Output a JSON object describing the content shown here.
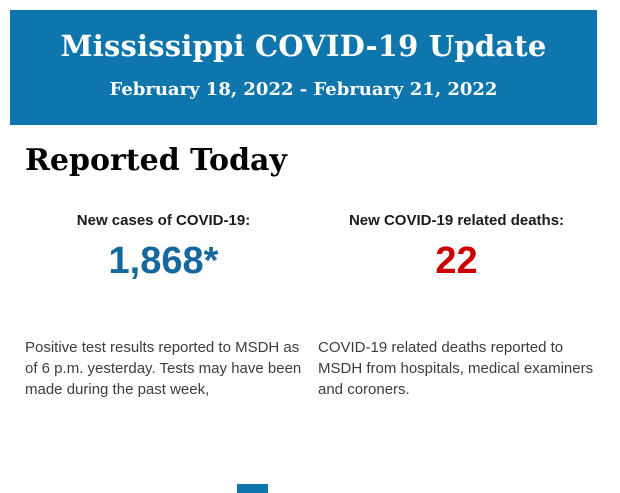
{
  "banner": {
    "title": "Mississippi COVID-19 Update",
    "date_range": "February 18, 2022 - February 21, 2022",
    "bg_color": "#0f76ad",
    "text_color": "#ffffff"
  },
  "section": {
    "heading": "Reported Today"
  },
  "stats": [
    {
      "label": "New cases of COVID-19:",
      "value": "1,868*",
      "value_color": "#15689e",
      "description": "Positive test results reported to MSDH as of 6 p.m. yesterday. Tests may have been made during the past week,"
    },
    {
      "label": "New COVID-19 related deaths:",
      "value": "22",
      "value_color": "#cc0000",
      "description": "COVID-19 related deaths reported to MSDH from hospitals, medical examiners and coroners."
    }
  ],
  "footer": {
    "next_section_color": "#0f76ad"
  }
}
